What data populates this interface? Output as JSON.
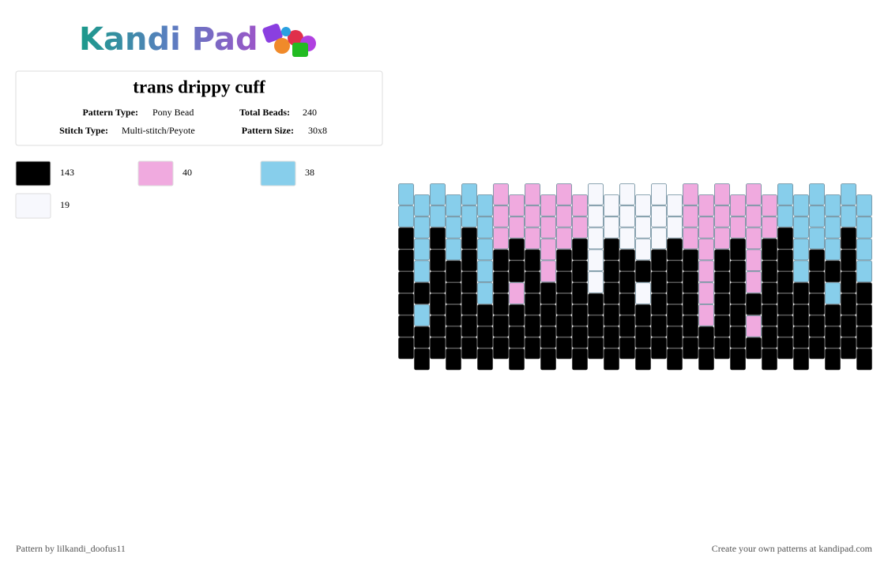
{
  "logo": {
    "text": "Kandi Pad"
  },
  "info": {
    "title": "trans drippy cuff",
    "fields": [
      {
        "label": "Pattern Type:",
        "value": "Pony Bead"
      },
      {
        "label": "Total Beads:",
        "value": "240"
      },
      {
        "label": "Stitch Type:",
        "value": "Multi-stitch/Peyote"
      },
      {
        "label": "Pattern Size:",
        "value": "30x8"
      }
    ]
  },
  "legend": [
    {
      "color": "#000000",
      "count": 143
    },
    {
      "color": "#f0aadf",
      "count": 40
    },
    {
      "color": "#87ceeb",
      "count": 38
    },
    {
      "color": "#f7f8fd",
      "count": 19
    }
  ],
  "pattern": {
    "columns": [
      [
        2,
        2,
        0,
        0,
        0,
        0,
        0,
        0
      ],
      [
        2,
        2,
        2,
        2,
        0,
        2,
        0,
        0
      ],
      [
        2,
        2,
        0,
        0,
        0,
        0,
        0,
        0
      ],
      [
        2,
        2,
        2,
        0,
        0,
        0,
        0,
        0
      ],
      [
        2,
        2,
        0,
        0,
        0,
        0,
        0,
        0
      ],
      [
        2,
        2,
        2,
        2,
        2,
        0,
        0,
        0
      ],
      [
        1,
        1,
        1,
        0,
        0,
        0,
        0,
        0
      ],
      [
        1,
        1,
        0,
        0,
        1,
        0,
        0,
        0
      ],
      [
        1,
        1,
        1,
        0,
        0,
        0,
        0,
        0
      ],
      [
        1,
        1,
        1,
        1,
        0,
        0,
        0,
        0
      ],
      [
        1,
        1,
        1,
        0,
        0,
        0,
        0,
        0
      ],
      [
        1,
        1,
        0,
        0,
        0,
        0,
        0,
        0
      ],
      [
        3,
        3,
        3,
        3,
        3,
        0,
        0,
        0
      ],
      [
        3,
        3,
        0,
        0,
        0,
        0,
        0,
        0
      ],
      [
        3,
        3,
        3,
        0,
        0,
        0,
        0,
        0
      ],
      [
        3,
        3,
        3,
        0,
        3,
        0,
        0,
        0
      ],
      [
        3,
        3,
        3,
        0,
        0,
        0,
        0,
        0
      ],
      [
        3,
        3,
        0,
        0,
        0,
        0,
        0,
        0
      ],
      [
        1,
        1,
        1,
        0,
        0,
        0,
        0,
        0
      ],
      [
        1,
        1,
        1,
        1,
        1,
        1,
        0,
        0
      ],
      [
        1,
        1,
        1,
        0,
        0,
        0,
        0,
        0
      ],
      [
        1,
        1,
        0,
        0,
        0,
        0,
        0,
        0
      ],
      [
        1,
        1,
        1,
        1,
        1,
        0,
        1,
        0
      ],
      [
        1,
        1,
        0,
        0,
        0,
        0,
        0,
        0
      ],
      [
        2,
        2,
        0,
        0,
        0,
        0,
        0,
        0
      ],
      [
        2,
        2,
        2,
        2,
        0,
        0,
        0,
        0
      ],
      [
        2,
        2,
        2,
        0,
        0,
        0,
        0,
        0
      ],
      [
        2,
        2,
        2,
        0,
        2,
        0,
        0,
        0
      ],
      [
        2,
        2,
        0,
        0,
        0,
        0,
        0,
        0
      ],
      [
        2,
        2,
        2,
        2,
        0,
        0,
        0,
        0
      ]
    ]
  },
  "footer": {
    "left": "Pattern by lilkandi_doofus11",
    "right": "Create your own patterns at kandipad.com"
  }
}
